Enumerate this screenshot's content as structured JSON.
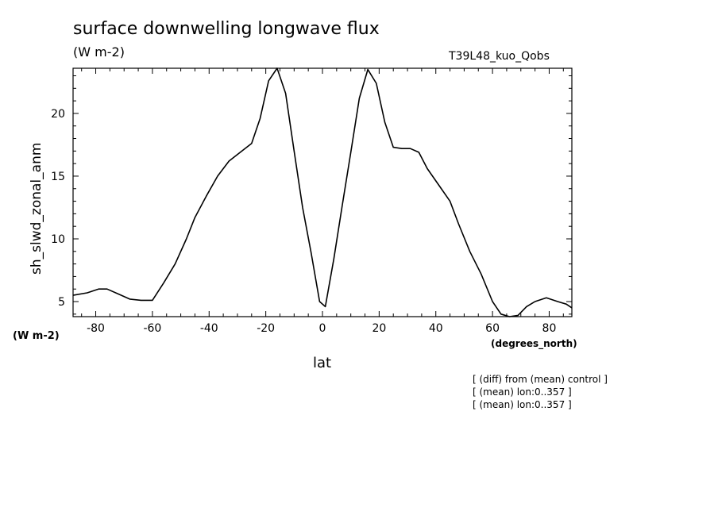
{
  "header": {
    "title": "surface downwelling longwave flux",
    "units": "(W m-2)",
    "run_tag": "T39L48_kuo_Qobs"
  },
  "notes": [
    "[ (diff) from (mean) control ]",
    "[ (mean) lon:0..357 ]",
    "[ (mean) lon:0..357 ]"
  ],
  "chart_data": {
    "type": "line",
    "title": "surface downwelling longwave flux",
    "xlabel": "lat",
    "xunits": "(degrees_north)",
    "ylabel": "sh_slwd_zonal_anm",
    "yunits": "(W m-2)",
    "xlim": [
      -88,
      88
    ],
    "ylim": [
      3.8,
      23.6
    ],
    "xticks": [
      -80,
      -60,
      -40,
      -20,
      0,
      20,
      40,
      60,
      80
    ],
    "yticks": [
      5,
      10,
      15,
      20
    ],
    "grid": false,
    "series": [
      {
        "x": [
          -88,
          -83,
          -79,
          -76,
          -72,
          -68,
          -64,
          -60,
          -56,
          -52,
          -48,
          -45,
          -41,
          -37,
          -33,
          -29,
          -25,
          -22,
          -19,
          -16,
          -13,
          -10,
          -7,
          -4,
          -1,
          1,
          4,
          7,
          10,
          13,
          16,
          19,
          22,
          25,
          28,
          31,
          34,
          37,
          41,
          45,
          48,
          52,
          56,
          60,
          63,
          66,
          69,
          72,
          75,
          79,
          83,
          86,
          88
        ],
        "y": [
          5.5,
          5.7,
          6.0,
          6.0,
          5.6,
          5.2,
          5.1,
          5.1,
          6.5,
          8.0,
          10.0,
          11.7,
          13.4,
          15.0,
          16.2,
          16.9,
          17.6,
          19.6,
          22.6,
          23.6,
          21.6,
          17.0,
          12.5,
          8.9,
          5.0,
          4.6,
          8.4,
          12.7,
          16.9,
          21.2,
          23.5,
          22.4,
          19.3,
          17.3,
          17.2,
          17.2,
          16.9,
          15.6,
          14.3,
          13.0,
          11.2,
          9.0,
          7.2,
          5.0,
          4.0,
          3.8,
          3.9,
          4.6,
          5.0,
          5.3,
          5.0,
          4.8,
          4.5
        ]
      }
    ]
  }
}
